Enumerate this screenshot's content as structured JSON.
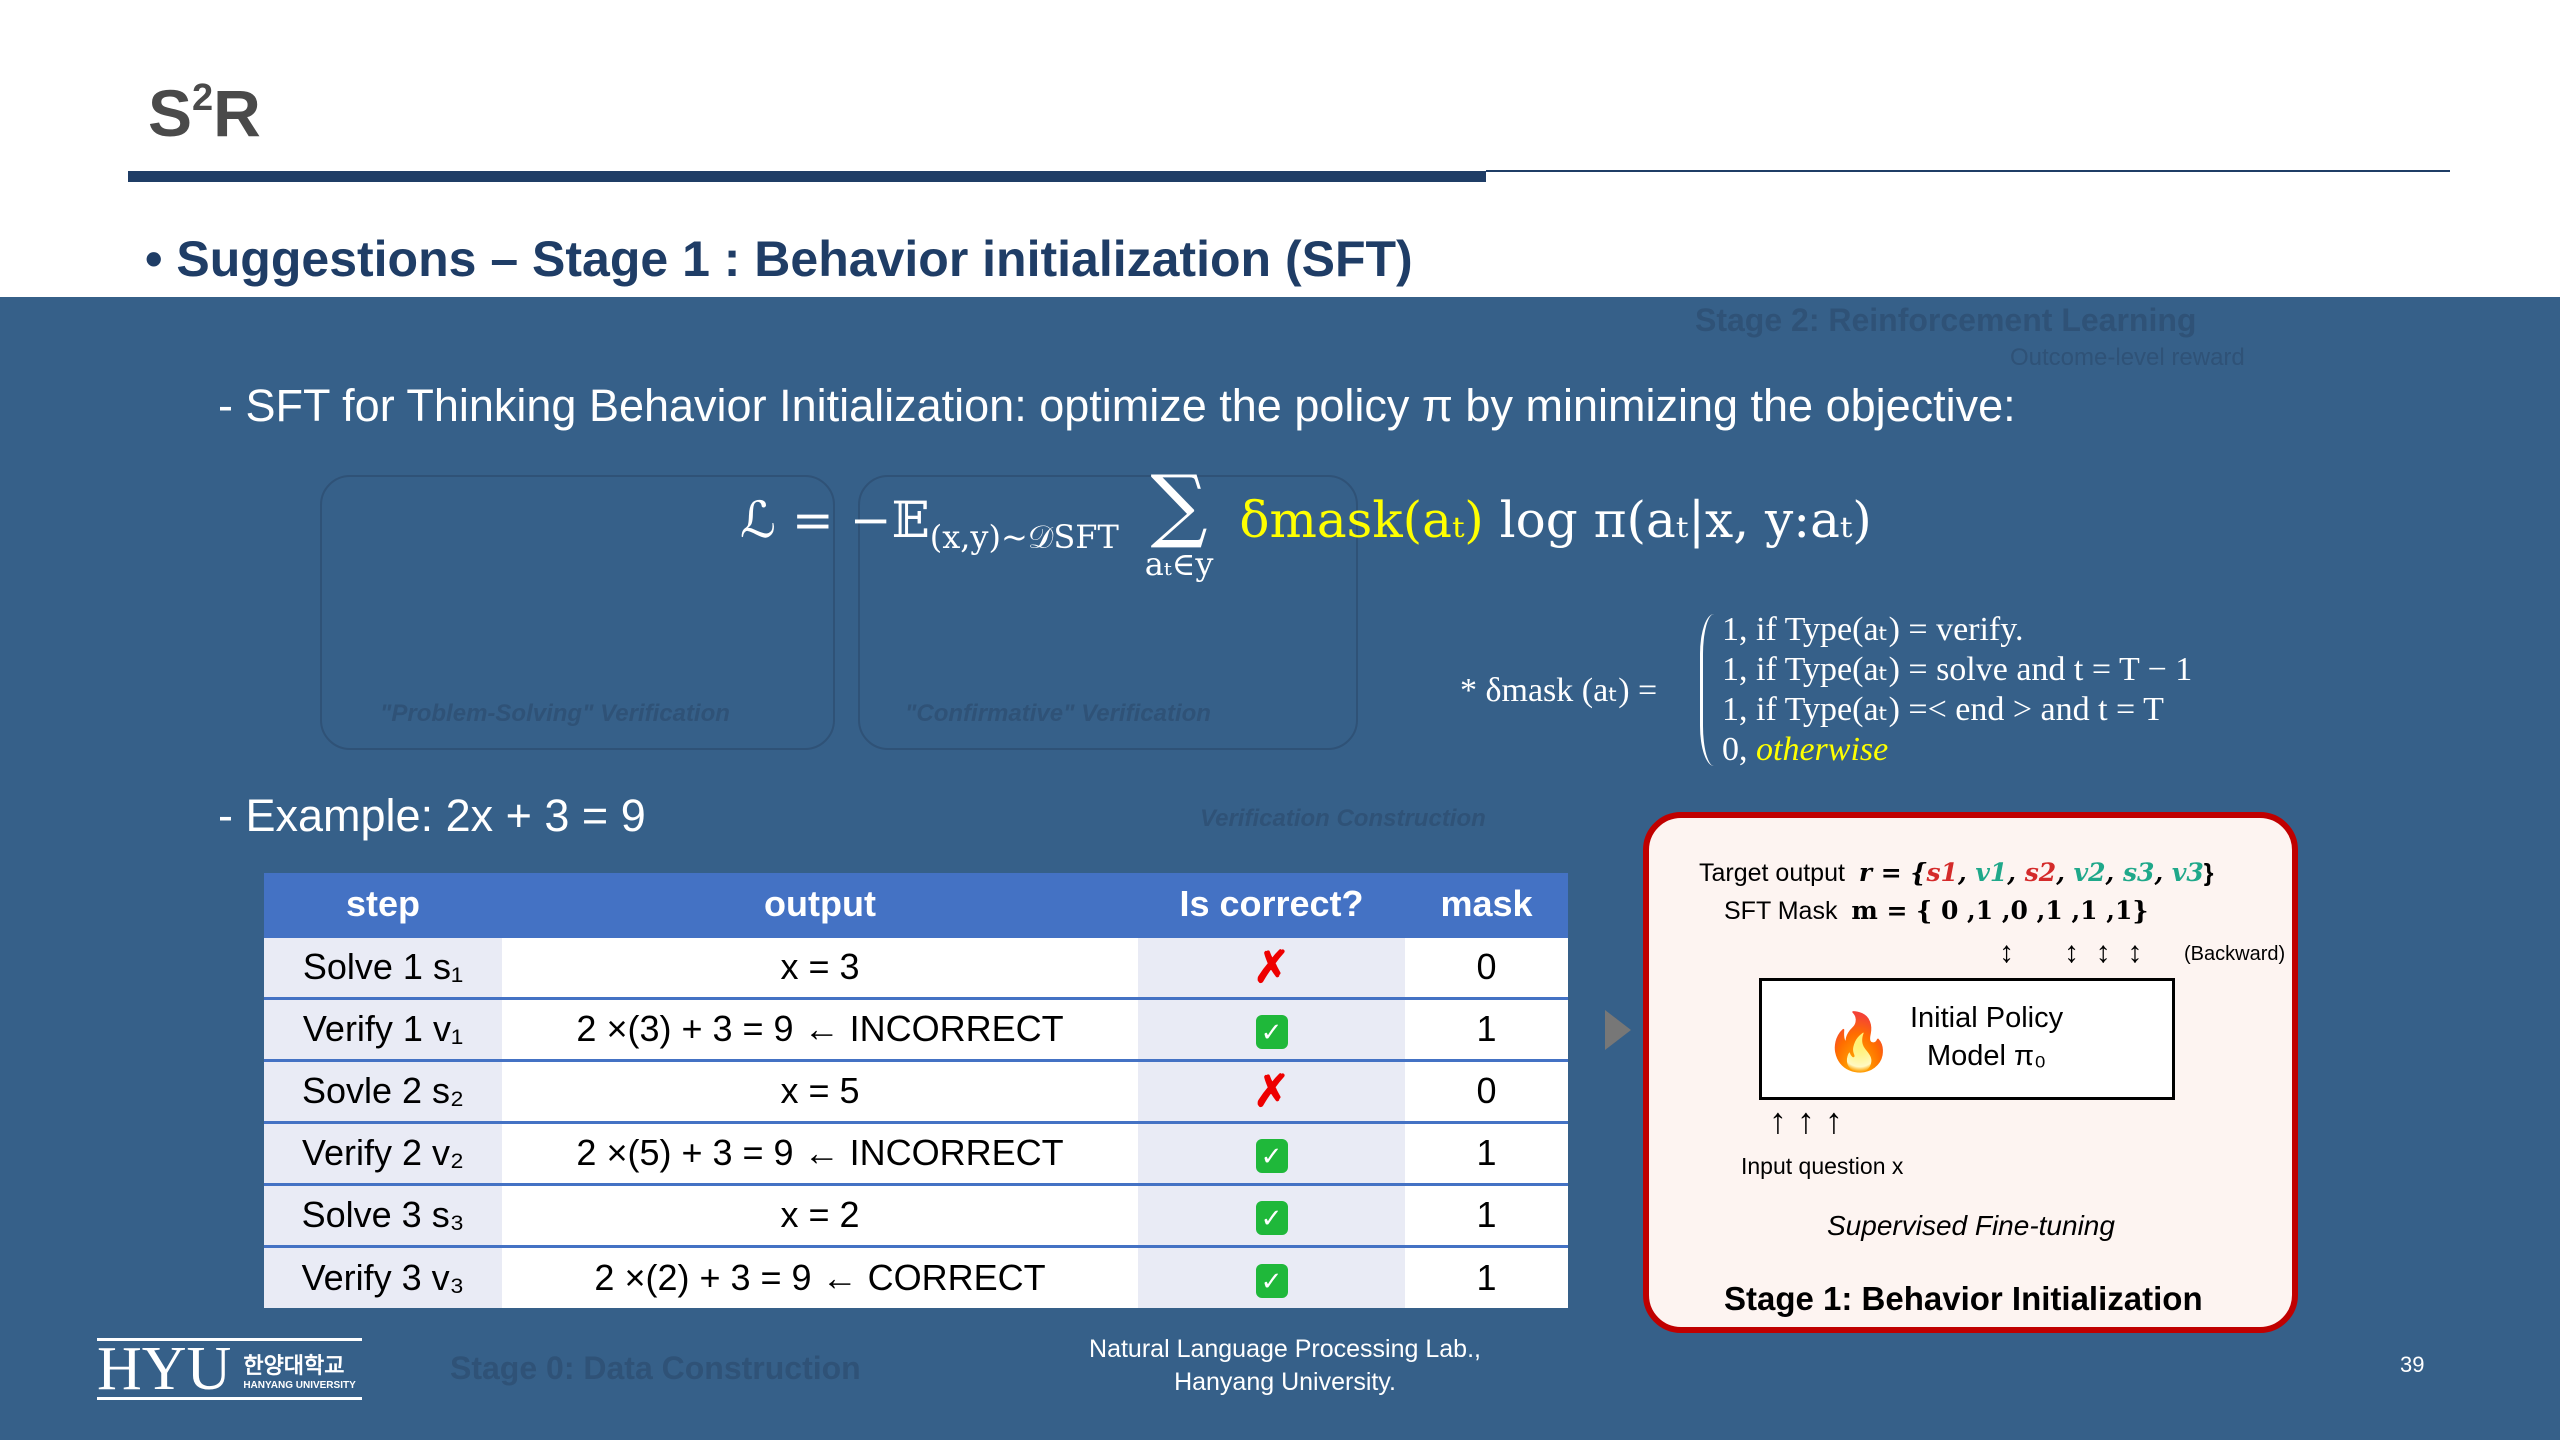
{
  "slide": {
    "title_base": "S",
    "title_sup": "2",
    "title_end": "R",
    "page_number": "39"
  },
  "bullet": "Suggestions – Stage 1 : Behavior initialization (SFT)",
  "background_ghost": {
    "stage2": "Stage 2: Reinforcement Learning",
    "outcome": "Outcome-level reward",
    "ps": "\"Problem-Solving\" Verification",
    "cv": "\"Confirmative\" Verification",
    "vc": "Verification Construction",
    "stage0": "Stage 0: Data Construction"
  },
  "line1": "- SFT for Thinking Behavior Initialization: optimize the policy π by minimizing the objective:",
  "formula": {
    "lhs": "ℒ = −𝔼",
    "sub": "(x,y)~𝒟SFT",
    "sum": "∑",
    "sum_sub": "aₜ∈y",
    "delta": "δmask(aₜ)",
    "rest": " log π(aₜ|x, y:aₜ)"
  },
  "delta_def": {
    "lhs": "* δmask (aₜ) =",
    "rows": [
      "1,     if Type(aₜ) = verify.",
      "1,     if Type(aₜ) = solve and t = T − 1",
      "1,     if Type(aₜ) =< end > and t = T",
      "0,     "
    ],
    "otherwise": "otherwise"
  },
  "example": "- Example: 2x + 3 = 9",
  "table": {
    "headers": [
      "step",
      "output",
      "Is correct?",
      "mask"
    ],
    "rows": [
      {
        "step": "Solve 1 s₁",
        "output": "x = 3",
        "correct": false,
        "mask": "0"
      },
      {
        "step": "Verify 1 v₁",
        "output": "2 ×(3) + 3 = 9 ← INCORRECT",
        "correct": true,
        "mask": "1"
      },
      {
        "step": "Sovle 2 s₂",
        "output": "x = 5",
        "correct": false,
        "mask": "0"
      },
      {
        "step": "Verify 2 v₂",
        "output": "2 ×(5) + 3 = 9 ← INCORRECT",
        "correct": true,
        "mask": "1"
      },
      {
        "step": "Solve 3 s₃",
        "output": "x = 2",
        "correct": true,
        "mask": "1"
      },
      {
        "step": "Verify 3 v₃",
        "output": "2 ×(2) + 3 = 9 ← CORRECT",
        "correct": true,
        "mask": "1"
      }
    ]
  },
  "stage1": {
    "target_label": "Target output",
    "target_r": "r = {",
    "target_items": [
      "s1",
      "v1",
      "s2",
      "v2",
      "s3",
      "v3"
    ],
    "mask_label": "SFT  Mask",
    "mask_expr": "m = { 0  ,1  ,0  ,1  ,1 ,1}",
    "backward": "(Backward)",
    "model_line1": "Initial Policy",
    "model_line2": "Model π₀",
    "input": "Input question x",
    "sft": "Supervised Fine-tuning",
    "title": "Stage 1: Behavior Initialization",
    "colors": {
      "s": "#d42a2a",
      "v": "#1fa88a"
    }
  },
  "footer": {
    "logo": "HYU",
    "logo_kr": "한양대학교",
    "logo_en": "HANYANG UNIVERSITY",
    "line1": "Natural Language Processing Lab.,",
    "line2": "Hanyang University."
  }
}
